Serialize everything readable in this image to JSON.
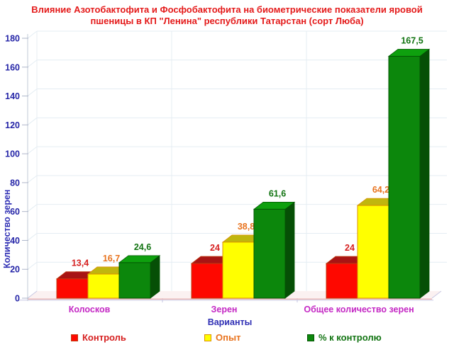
{
  "title": {
    "line1": "Влияние Азотобактофита и Фосфобактофита на биометрические показатели яровой",
    "line2": "пшеницы в КП \"Ленина\" республики Татарстан (сорт Люба)",
    "color": "#e41a1a"
  },
  "chart_data": {
    "type": "bar",
    "projection": "3d",
    "title": "Влияние Азотобактофита и Фосфобактофита на биометрические показатели яровой пшеницы в КП \"Ленина\" республики Татарстан (сорт Люба)",
    "xlabel": "Варианты",
    "ylabel": "Количество зерен",
    "ylim": [
      0,
      180
    ],
    "ytick_step": 20,
    "ytick_labels": [
      "0",
      "20",
      "40",
      "60",
      "80",
      "100",
      "120",
      "140",
      "160",
      "180"
    ],
    "grid": true,
    "legend_position": "bottom",
    "categories": [
      "Колосков",
      "Зерен",
      "Общее количество  зерен"
    ],
    "category_label_color": "#c428c4",
    "axis_text_color": "#2626a8",
    "axis_title_color": "#2e2eb4",
    "series": [
      {
        "name": "Контроль",
        "values": [
          13.4,
          24,
          24
        ],
        "value_labels": [
          "13,4",
          "24",
          "24"
        ],
        "colors": {
          "front": "#fe0800",
          "top": "#a81414",
          "side": "#7e0e0e",
          "border": "#c03a10",
          "label": "#d61f1f"
        }
      },
      {
        "name": "Опыт",
        "values": [
          16.7,
          38.8,
          64.2
        ],
        "value_labels": [
          "16,7",
          "38,8",
          "64,2"
        ],
        "colors": {
          "front": "#ffff00",
          "top": "#c0b60e",
          "side": "#8f880c",
          "border": "#dc9000",
          "label": "#e8731e"
        }
      },
      {
        "name": "% к контролю",
        "values": [
          24.6,
          61.6,
          167.5
        ],
        "value_labels": [
          "24,6",
          "61,6",
          "167,5"
        ],
        "colors": {
          "front": "#0c870c",
          "top": "#0ea00e",
          "side": "#064f06",
          "border": "#035503",
          "label": "#127412"
        }
      }
    ]
  }
}
